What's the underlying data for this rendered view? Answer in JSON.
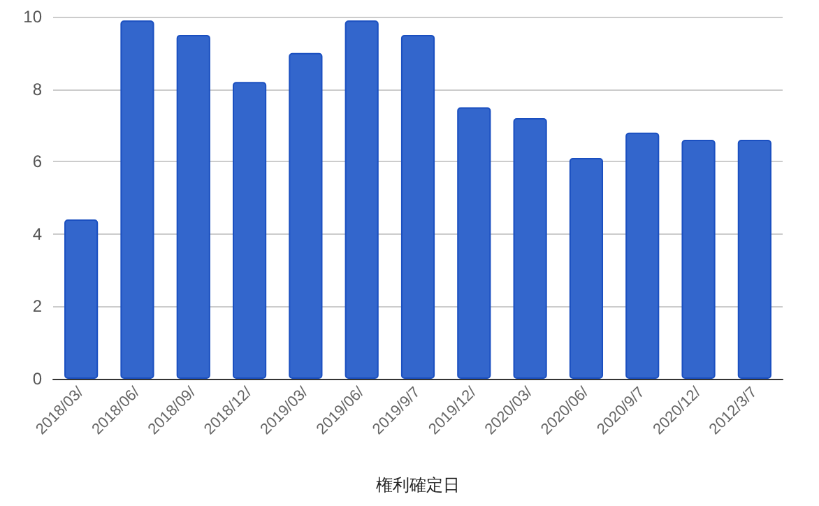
{
  "chart_data": {
    "type": "bar",
    "xlabel": "権利確定日",
    "categories": [
      "2018/03/",
      "2018/06/",
      "2018/09/",
      "2018/12/",
      "2019/03/",
      "2019/06/",
      "2019/9/7",
      "2019/12/",
      "2020/03/",
      "2020/06/",
      "2020/9/7",
      "2020/12/",
      "2012/3/7"
    ],
    "values": [
      4.4,
      9.9,
      9.5,
      8.2,
      9.0,
      9.9,
      9.5,
      7.5,
      7.2,
      6.1,
      6.8,
      6.6,
      6.6
    ],
    "color": "#3366cc",
    "ylim": [
      0,
      10
    ],
    "yticks": [
      0,
      2,
      4,
      6,
      8,
      10
    ],
    "grid": "y"
  }
}
